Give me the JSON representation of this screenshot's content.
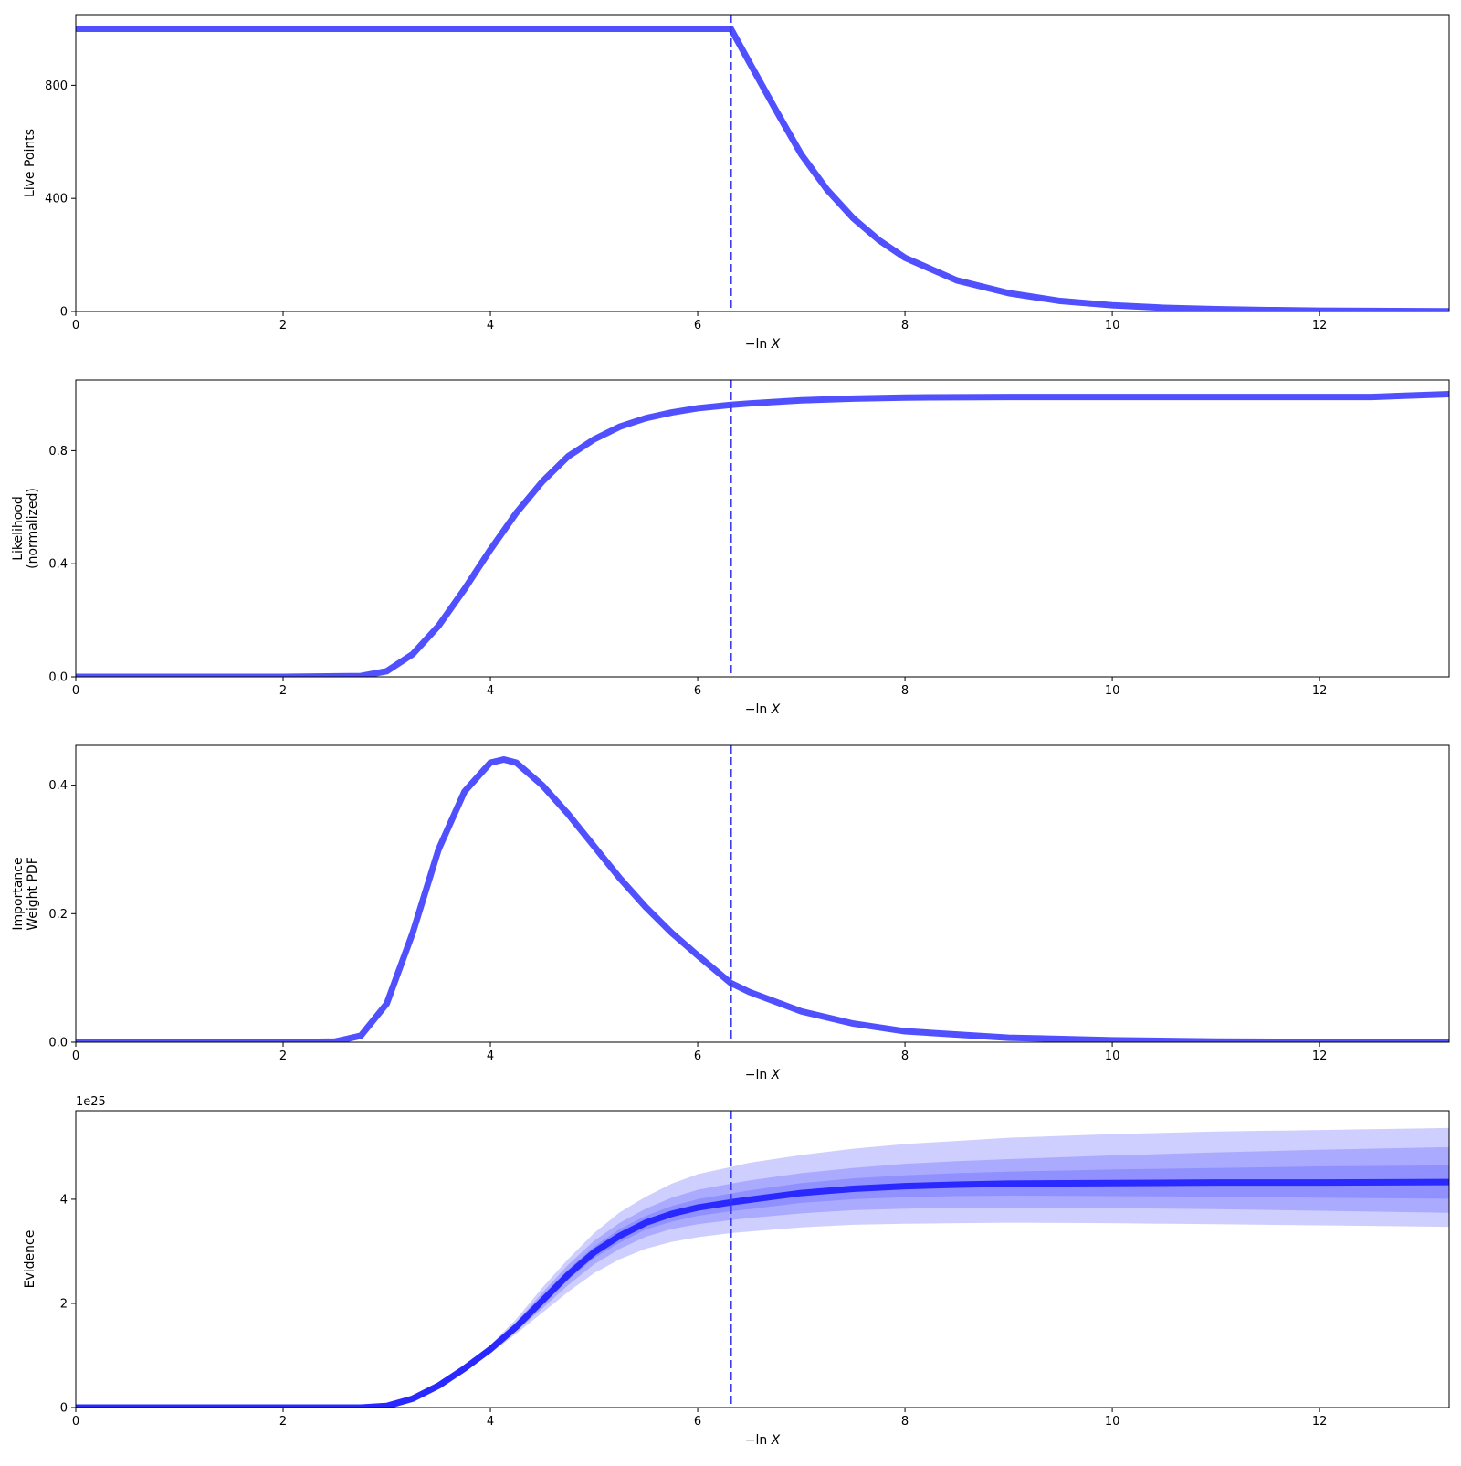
{
  "chart_data": [
    {
      "type": "line",
      "ylabel": [
        "Live Points"
      ],
      "xlabel": "−ln X",
      "xlim": [
        0,
        13.25
      ],
      "ylim": [
        0,
        1050
      ],
      "xticks": [
        0,
        2,
        4,
        6,
        8,
        10,
        12
      ],
      "yticks": [
        0,
        400,
        800
      ],
      "grid": false,
      "vline_x": 6.32,
      "series": [
        {
          "color": "#5050ff",
          "x": [
            0,
            1,
            2,
            3,
            4,
            5,
            6,
            6.32,
            6.5,
            6.75,
            7,
            7.25,
            7.5,
            7.75,
            8,
            8.5,
            9,
            9.5,
            10,
            10.5,
            11,
            11.5,
            12,
            12.5,
            13.25
          ],
          "y": [
            1000,
            1000,
            1000,
            1000,
            1000,
            1000,
            1000,
            1000,
            880,
            715,
            555,
            430,
            330,
            252,
            190,
            110,
            65,
            37,
            22,
            13,
            8,
            5,
            3,
            2,
            1
          ]
        }
      ]
    },
    {
      "type": "line",
      "ylabel": [
        "Likelihood",
        "(normalized)"
      ],
      "xlabel": "−ln X",
      "xlim": [
        0,
        13.25
      ],
      "ylim": [
        0,
        1.05
      ],
      "xticks": [
        0,
        2,
        4,
        6,
        8,
        10,
        12
      ],
      "yticks": [
        0.0,
        0.4,
        0.8
      ],
      "ytick_labels": [
        "0.0",
        "0.4",
        "0.8"
      ],
      "grid": false,
      "vline_x": 6.32,
      "series": [
        {
          "color": "#5050ff",
          "x": [
            0,
            1,
            2,
            2.75,
            3.0,
            3.25,
            3.5,
            3.75,
            4.0,
            4.25,
            4.5,
            4.75,
            5.0,
            5.25,
            5.5,
            5.75,
            6.0,
            6.32,
            6.5,
            7.0,
            7.5,
            8.0,
            9.0,
            10.0,
            11.0,
            12.0,
            12.5,
            13.25
          ],
          "y": [
            0,
            0,
            0,
            0.003,
            0.02,
            0.08,
            0.18,
            0.31,
            0.45,
            0.58,
            0.69,
            0.78,
            0.84,
            0.885,
            0.915,
            0.935,
            0.95,
            0.962,
            0.967,
            0.978,
            0.984,
            0.988,
            0.99,
            0.99,
            0.99,
            0.99,
            0.99,
            1.0
          ]
        }
      ]
    },
    {
      "type": "line",
      "ylabel": [
        "Importance",
        "Weight PDF"
      ],
      "xlabel": "−ln X",
      "xlim": [
        0,
        13.25
      ],
      "ylim": [
        0,
        0.462
      ],
      "xticks": [
        0,
        2,
        4,
        6,
        8,
        10,
        12
      ],
      "yticks": [
        0.0,
        0.2,
        0.4
      ],
      "ytick_labels": [
        "0.0",
        "0.2",
        "0.4"
      ],
      "grid": false,
      "vline_x": 6.32,
      "series": [
        {
          "color": "#5050ff",
          "x": [
            0,
            1,
            2,
            2.5,
            2.75,
            3.0,
            3.25,
            3.5,
            3.75,
            4.0,
            4.13,
            4.25,
            4.5,
            4.75,
            5.0,
            5.25,
            5.5,
            5.75,
            6.0,
            6.32,
            6.5,
            7.0,
            7.5,
            8.0,
            9.0,
            10.0,
            11.0,
            12.0,
            13.25
          ],
          "y": [
            0,
            0,
            0,
            0.001,
            0.01,
            0.06,
            0.17,
            0.3,
            0.39,
            0.435,
            0.44,
            0.435,
            0.4,
            0.355,
            0.305,
            0.255,
            0.21,
            0.17,
            0.135,
            0.092,
            0.078,
            0.048,
            0.029,
            0.017,
            0.007,
            0.003,
            0.001,
            0.0005,
            0.0002
          ]
        }
      ]
    },
    {
      "type": "area",
      "ylabel": [
        "Evidence"
      ],
      "xlabel": "−ln X",
      "xlim": [
        0,
        13.25
      ],
      "ylim": [
        0,
        5.7
      ],
      "y_scale_label": "1e25",
      "xticks": [
        0,
        2,
        4,
        6,
        8,
        10,
        12
      ],
      "yticks": [
        0,
        2,
        4
      ],
      "grid": false,
      "vline_x": 6.32,
      "x": [
        0,
        1,
        2,
        2.75,
        3.0,
        3.25,
        3.5,
        3.75,
        4.0,
        4.25,
        4.5,
        4.75,
        5.0,
        5.25,
        5.5,
        5.75,
        6.0,
        6.32,
        6.5,
        7.0,
        7.5,
        8.0,
        8.5,
        9.0,
        10.0,
        11.0,
        12.0,
        13.25
      ],
      "median": [
        0,
        0,
        0,
        0,
        0.03,
        0.17,
        0.42,
        0.75,
        1.12,
        1.55,
        2.05,
        2.55,
        2.98,
        3.3,
        3.55,
        3.72,
        3.84,
        3.94,
        3.99,
        4.12,
        4.2,
        4.25,
        4.28,
        4.3,
        4.31,
        4.32,
        4.32,
        4.33
      ],
      "bands": [
        {
          "name": "3-sigma",
          "color": "#5050ff",
          "opacity": 0.28,
          "upper": [
            0,
            0,
            0,
            0,
            0.03,
            0.18,
            0.45,
            0.8,
            1.2,
            1.7,
            2.3,
            2.85,
            3.35,
            3.75,
            4.05,
            4.3,
            4.48,
            4.62,
            4.7,
            4.85,
            4.97,
            5.06,
            5.12,
            5.18,
            5.25,
            5.3,
            5.33,
            5.37
          ],
          "lower": [
            0,
            0,
            0,
            0,
            0.02,
            0.16,
            0.39,
            0.7,
            1.04,
            1.42,
            1.82,
            2.22,
            2.58,
            2.85,
            3.05,
            3.18,
            3.27,
            3.35,
            3.38,
            3.46,
            3.51,
            3.53,
            3.54,
            3.55,
            3.54,
            3.52,
            3.5,
            3.47
          ]
        },
        {
          "name": "2-sigma",
          "color": "#5050ff",
          "opacity": 0.28,
          "upper": [
            0,
            0,
            0,
            0,
            0.03,
            0.175,
            0.44,
            0.78,
            1.17,
            1.64,
            2.2,
            2.74,
            3.2,
            3.55,
            3.82,
            4.03,
            4.18,
            4.3,
            4.36,
            4.5,
            4.6,
            4.68,
            4.73,
            4.77,
            4.84,
            4.9,
            4.95,
            5.0
          ],
          "lower": [
            0,
            0,
            0,
            0,
            0.025,
            0.165,
            0.4,
            0.72,
            1.07,
            1.47,
            1.9,
            2.35,
            2.75,
            3.05,
            3.28,
            3.43,
            3.52,
            3.6,
            3.64,
            3.73,
            3.79,
            3.82,
            3.84,
            3.84,
            3.83,
            3.81,
            3.78,
            3.74
          ]
        },
        {
          "name": "1-sigma",
          "color": "#5050ff",
          "opacity": 0.28,
          "upper": [
            0,
            0,
            0,
            0,
            0.03,
            0.172,
            0.43,
            0.765,
            1.14,
            1.6,
            2.13,
            2.65,
            3.09,
            3.43,
            3.68,
            3.87,
            4.0,
            4.11,
            4.17,
            4.31,
            4.4,
            4.46,
            4.5,
            4.53,
            4.57,
            4.6,
            4.63,
            4.65
          ],
          "lower": [
            0,
            0,
            0,
            0,
            0.028,
            0.168,
            0.41,
            0.735,
            1.1,
            1.5,
            1.97,
            2.45,
            2.87,
            3.17,
            3.42,
            3.57,
            3.68,
            3.77,
            3.81,
            3.93,
            4.0,
            4.04,
            4.06,
            4.07,
            4.06,
            4.05,
            4.03,
            4.01
          ]
        }
      ],
      "median_color": "#2828ff"
    }
  ]
}
